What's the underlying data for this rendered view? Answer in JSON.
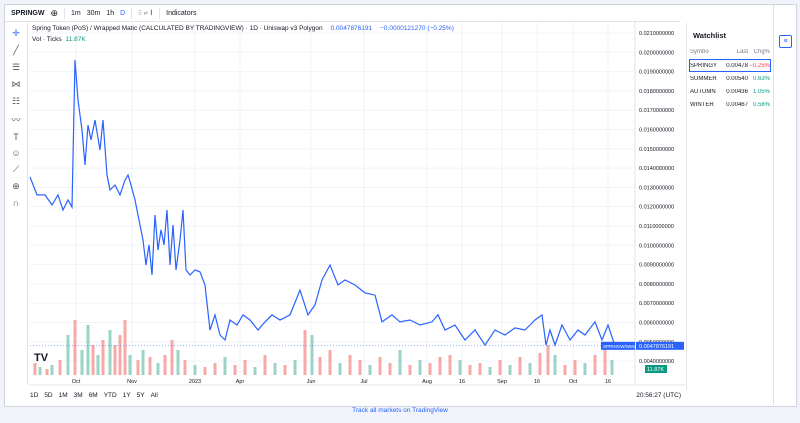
{
  "toolbar": {
    "symbol": "SPRINGW",
    "intervals": [
      "1m",
      "30m",
      "1h",
      "D"
    ],
    "indicators": "Indicators"
  },
  "legend": {
    "title": "Spring Token (PoS) / Wrapped Matic (CALCULATED BY TRADINGVIEW) · 1D · Uniswap v3 Polygon",
    "price": "0.0047876191",
    "change": "−0.0000121270 (−0.25%)",
    "volume_label": "Vol · Ticks",
    "volume_value": "11.87K"
  },
  "chart_data": {
    "type": "line",
    "x": [
      0,
      7,
      15,
      22,
      28,
      33,
      38,
      42,
      45,
      48,
      52,
      55,
      58,
      61,
      65,
      70,
      73,
      77,
      80,
      85,
      90,
      95,
      98,
      101,
      105,
      109,
      113,
      116,
      119,
      122,
      125,
      128,
      131,
      134,
      137,
      140,
      143,
      146,
      150,
      153,
      156,
      160,
      165,
      170,
      175,
      180,
      185,
      190,
      195,
      200,
      207,
      213,
      220,
      228,
      235,
      242,
      250,
      260,
      270,
      278,
      285,
      292,
      300,
      308,
      315,
      325,
      335,
      345,
      352,
      362,
      370,
      380,
      390,
      402,
      408,
      415,
      425,
      435,
      445,
      455,
      465,
      475,
      485,
      495,
      505,
      512,
      516,
      520,
      525,
      532,
      540,
      548,
      555,
      565,
      572,
      578,
      585
    ],
    "series": [
      {
        "name": "SPRINGW/WMATIC",
        "color": "#2962ff",
        "values": [
          0.01354,
          0.01261,
          0.01261,
          0.01209,
          0.01261,
          0.01183,
          0.01235,
          0.01198,
          0.0196,
          0.01753,
          0.01597,
          0.01416,
          0.01623,
          0.01546,
          0.01649,
          0.01494,
          0.01649,
          0.01364,
          0.01287,
          0.01312,
          0.01261,
          0.01338,
          0.01364,
          0.01312,
          0.01235,
          0.01131,
          0.01027,
          0.00898,
          0.01002,
          0.00846,
          0.01157,
          0.00976,
          0.0108,
          0.01002,
          0.01183,
          0.00898,
          0.01105,
          0.00872,
          0.01027,
          0.01183,
          0.00872,
          0.00846,
          0.00872,
          0.00862,
          0.00794,
          0.00561,
          0.00639,
          0.00535,
          0.00509,
          0.00613,
          0.00587,
          0.00639,
          0.00613,
          0.00561,
          0.00603,
          0.00639,
          0.00613,
          0.00639,
          0.00768,
          0.00639,
          0.00691,
          0.0082,
          0.00898,
          0.00794,
          0.0082,
          0.00794,
          0.00753,
          0.00742,
          0.00603,
          0.00639,
          0.00603,
          0.00613,
          0.00587,
          0.00603,
          0.00639,
          0.00561,
          0.00587,
          0.00509,
          0.00561,
          0.00483,
          0.00561,
          0.00535,
          0.00572,
          0.00561,
          0.00613,
          0.00639,
          0.00483,
          0.00561,
          0.00483,
          0.00587,
          0.00509,
          0.00561,
          0.00535,
          0.00603,
          0.00509,
          0.00587,
          0.00479
        ]
      }
    ],
    "xlim": [
      0,
      585
    ],
    "ylim": [
      0.00276,
      0.02157
    ],
    "yticks": [
      {
        "value": 0.021,
        "label": "0.0210000000"
      },
      {
        "value": 0.02,
        "label": "0.0200000000"
      },
      {
        "value": 0.019,
        "label": "0.0190000000"
      },
      {
        "value": 0.018,
        "label": "0.0180000000"
      },
      {
        "value": 0.017,
        "label": "0.0170000000"
      },
      {
        "value": 0.016,
        "label": "0.0160000000"
      },
      {
        "value": 0.015,
        "label": "0.0150000000"
      },
      {
        "value": 0.014,
        "label": "0.0140000000"
      },
      {
        "value": 0.013,
        "label": "0.0130000000"
      },
      {
        "value": 0.012,
        "label": "0.0120000000"
      },
      {
        "value": 0.011,
        "label": "0.0110000000"
      },
      {
        "value": 0.01,
        "label": "0.0100000000"
      },
      {
        "value": 0.009,
        "label": "0.0090000000"
      },
      {
        "value": 0.008,
        "label": "0.0080000000"
      },
      {
        "value": 0.007,
        "label": "0.0070000000"
      },
      {
        "value": 0.006,
        "label": "0.0060000000"
      },
      {
        "value": 0.005,
        "label": "0.0050000000"
      },
      {
        "value": 0.004,
        "label": "0.0040000000"
      }
    ],
    "xticks": [
      {
        "value": 46,
        "label": "Oct"
      },
      {
        "value": 102,
        "label": "Nov"
      },
      {
        "value": 165,
        "label": "2023"
      },
      {
        "value": 210,
        "label": "Apr"
      },
      {
        "value": 281,
        "label": "Jun"
      },
      {
        "value": 334,
        "label": "Jul"
      },
      {
        "value": 397,
        "label": "Aug"
      },
      {
        "value": 432,
        "label": "16"
      },
      {
        "value": 472,
        "label": "Sep"
      },
      {
        "value": 507,
        "label": "16"
      },
      {
        "value": 543,
        "label": "Oct"
      },
      {
        "value": 578,
        "label": "16"
      }
    ],
    "grid": true,
    "volume": {
      "vlim": [
        0,
        60
      ],
      "x": [
        5,
        10,
        17,
        22,
        30,
        38,
        45,
        52,
        58,
        63,
        68,
        73,
        80,
        85,
        90,
        95,
        100,
        108,
        113,
        120,
        128,
        135,
        142,
        148,
        155,
        165,
        175,
        185,
        195,
        205,
        215,
        225,
        235,
        245,
        255,
        265,
        275,
        282,
        290,
        300,
        310,
        320,
        330,
        340,
        350,
        360,
        370,
        380,
        390,
        400,
        410,
        420,
        430,
        440,
        450,
        460,
        470,
        480,
        490,
        500,
        510,
        518,
        525,
        535,
        545,
        555,
        565,
        575,
        582
      ],
      "values": [
        12,
        8,
        6,
        10,
        15,
        40,
        55,
        25,
        50,
        30,
        20,
        35,
        45,
        30,
        40,
        55,
        20,
        15,
        25,
        18,
        12,
        20,
        35,
        25,
        15,
        10,
        8,
        12,
        18,
        10,
        15,
        8,
        20,
        12,
        10,
        15,
        45,
        40,
        18,
        25,
        12,
        20,
        15,
        10,
        18,
        12,
        25,
        10,
        15,
        12,
        18,
        20,
        15,
        10,
        12,
        8,
        15,
        10,
        18,
        12,
        22,
        30,
        20,
        10,
        15,
        12,
        20,
        30,
        15
      ],
      "colors": [
        "#f7a9a7",
        "#9bd4c6",
        "#f7a9a7",
        "#9bd4c6",
        "#f7a9a7",
        "#9bd4c6",
        "#f7a9a7",
        "#9bd4c6",
        "#9bd4c6",
        "#f7a9a7",
        "#9bd4c6",
        "#f7a9a7",
        "#9bd4c6",
        "#f7a9a7",
        "#f7a9a7",
        "#f7a9a7",
        "#9bd4c6",
        "#f7a9a7",
        "#9bd4c6",
        "#f7a9a7",
        "#9bd4c6",
        "#f7a9a7",
        "#f7a9a7",
        "#9bd4c6",
        "#f7a9a7",
        "#9bd4c6",
        "#f7a9a7",
        "#f7a9a7",
        "#9bd4c6",
        "#f7a9a7",
        "#f7a9a7",
        "#9bd4c6",
        "#f7a9a7",
        "#9bd4c6",
        "#f7a9a7",
        "#9bd4c6",
        "#f7a9a7",
        "#9bd4c6",
        "#f7a9a7",
        "#f7a9a7",
        "#9bd4c6",
        "#f7a9a7",
        "#f7a9a7",
        "#9bd4c6",
        "#f7a9a7",
        "#f7a9a7",
        "#9bd4c6",
        "#f7a9a7",
        "#9bd4c6",
        "#f7a9a7",
        "#f7a9a7",
        "#f7a9a7",
        "#9bd4c6",
        "#f7a9a7",
        "#f7a9a7",
        "#9bd4c6",
        "#f7a9a7",
        "#9bd4c6",
        "#f7a9a7",
        "#9bd4c6",
        "#f7a9a7",
        "#f7a9a7",
        "#9bd4c6",
        "#f7a9a7",
        "#f7a9a7",
        "#9bd4c6",
        "#f7a9a7",
        "#f7a9a7",
        "#9bd4c6"
      ]
    }
  },
  "ranges": [
    "1D",
    "5D",
    "1M",
    "3M",
    "6M",
    "YTD",
    "1Y",
    "5Y",
    "All"
  ],
  "time": "20:56:27 (UTC)",
  "footer": "Track all markets on TradingView",
  "watchlist": {
    "title": "Watchlist",
    "columns": [
      "Symbo",
      "Last",
      "Chg%"
    ],
    "rows": [
      [
        "SPRINGY",
        "0.00478",
        "−0.25%"
      ],
      [
        "SUMMER",
        "0.00540",
        "0.63%"
      ],
      [
        "AUTUMN",
        "0.00436",
        "1.05%"
      ],
      [
        "WINTER",
        "0.00467",
        "0.58%"
      ]
    ],
    "change_colors": [
      "#f23645",
      "#089981",
      "#089981",
      "#089981"
    ]
  }
}
